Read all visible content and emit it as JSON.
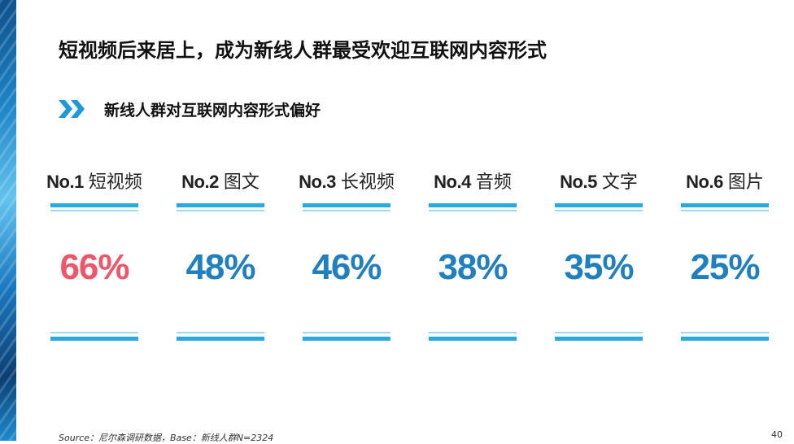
{
  "slide": {
    "title": "短视频后来居上，成为新线人群最受欢迎互联网内容形式",
    "subtitle": "新线人群对互联网内容形式偏好",
    "source": "Source：尼尔森调研数据，Base：新线人群N=2324",
    "page_number": "40"
  },
  "colors": {
    "highlight": "#f0566a",
    "value": "#1f7fbf",
    "bar": "#2aa8e0",
    "accent": "#1e9ad6"
  },
  "icons": {
    "subtitle_marker": "double-chevron-right-icon"
  },
  "rankings": [
    {
      "rank": "No.1",
      "label": "短视频",
      "value": "66%"
    },
    {
      "rank": "No.2",
      "label": "图文",
      "value": "48%"
    },
    {
      "rank": "No.3",
      "label": "长视频",
      "value": "46%"
    },
    {
      "rank": "No.4",
      "label": "音频",
      "value": "38%"
    },
    {
      "rank": "No.5",
      "label": "文字",
      "value": "35%"
    },
    {
      "rank": "No.6",
      "label": "图片",
      "value": "25%"
    }
  ]
}
